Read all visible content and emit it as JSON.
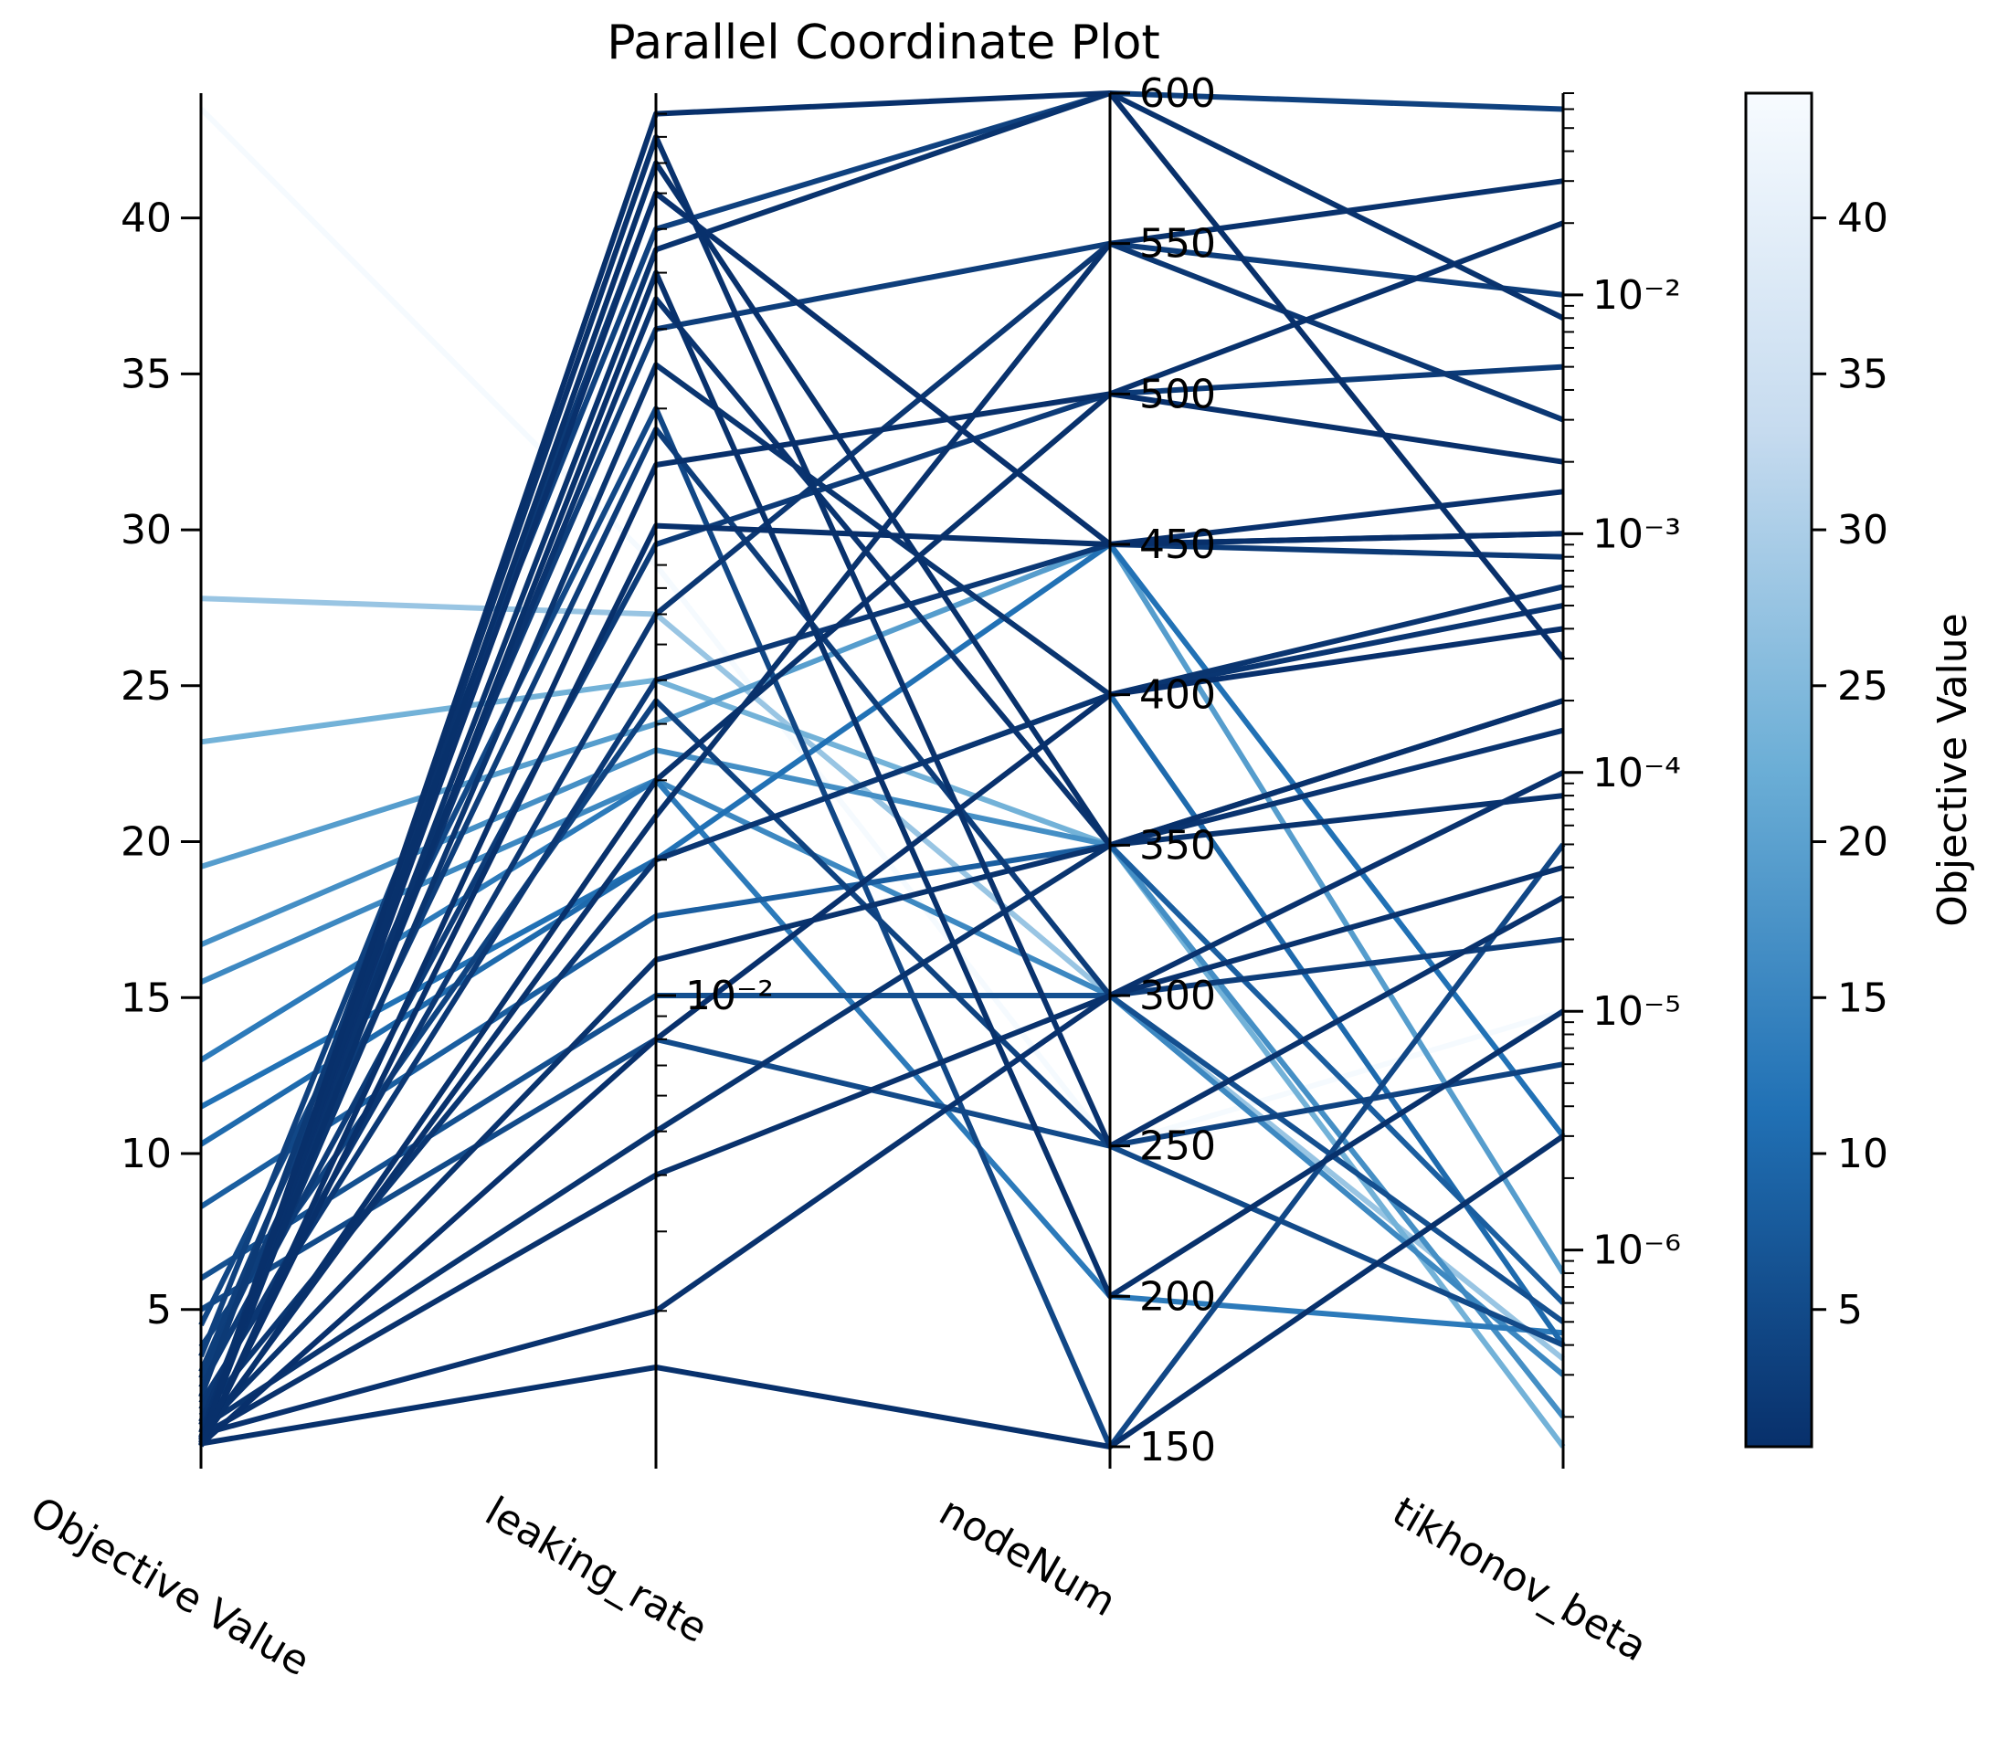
{
  "chart_data": {
    "type": "parallel_coordinates",
    "title": "Parallel Coordinate Plot",
    "colormap": "Blues_r",
    "colors": {
      "low": "#08306b",
      "mid": "#4292c6",
      "high": "#f7fbff"
    },
    "axes": [
      {
        "name": "Objective Value",
        "scale": "linear",
        "range": [
          0.6,
          44
        ],
        "ticks": [
          "5",
          "10",
          "15",
          "20",
          "25",
          "30",
          "35",
          "40"
        ],
        "tick_values": [
          5,
          10,
          15,
          20,
          25,
          30,
          35,
          40
        ],
        "tick_side": "left"
      },
      {
        "name": "leaking_rate",
        "scale": "log",
        "range": [
          0.001,
          1.0
        ],
        "ticks": [
          "10⁻²"
        ],
        "tick_values": [
          0.01
        ],
        "tick_side": "right"
      },
      {
        "name": "nodeNum",
        "scale": "linear",
        "range": [
          150,
          600
        ],
        "ticks": [
          "150",
          "200",
          "250",
          "300",
          "350",
          "400",
          "450",
          "500",
          "550",
          "600"
        ],
        "tick_values": [
          150,
          200,
          250,
          300,
          350,
          400,
          450,
          500,
          550,
          600
        ],
        "tick_side": "right"
      },
      {
        "name": "tikhonov_beta",
        "scale": "log",
        "range": [
          1.5e-07,
          0.07
        ],
        "ticks": [
          "10⁻⁶",
          "10⁻⁵",
          "10⁻⁴",
          "10⁻³",
          "10⁻²"
        ],
        "tick_values": [
          1e-06,
          1e-05,
          0.0001,
          0.001,
          0.01
        ],
        "tick_side": "right"
      }
    ],
    "colorbar": {
      "label": "Objective Value",
      "range": [
        0.6,
        44
      ],
      "ticks": [
        "5",
        "10",
        "15",
        "20",
        "25",
        "30",
        "35",
        "40"
      ],
      "tick_values": [
        5,
        10,
        15,
        20,
        25,
        30,
        35,
        40
      ]
    },
    "sample_lines": [
      [
        43.5,
        0.09,
        250,
        1e-05
      ],
      [
        27.8,
        0.07,
        300,
        3.5e-07
      ],
      [
        23.2,
        0.05,
        350,
        1.5e-07
      ],
      [
        19.2,
        0.04,
        450,
        8e-07
      ],
      [
        16.7,
        0.035,
        350,
        2e-07
      ],
      [
        15.5,
        0.03,
        300,
        3e-07
      ],
      [
        13.0,
        0.03,
        200,
        4.5e-07
      ],
      [
        11.5,
        0.02,
        450,
        3e-06
      ],
      [
        10.3,
        0.02,
        400,
        4e-07
      ],
      [
        8.3,
        0.015,
        350,
        6e-07
      ],
      [
        6.0,
        0.01,
        300,
        5e-07
      ],
      [
        5.0,
        0.008,
        250,
        4e-07
      ],
      [
        4.5,
        0.2,
        150,
        5e-05
      ],
      [
        3.5,
        0.5,
        600,
        0.06
      ],
      [
        3.0,
        0.3,
        550,
        0.01
      ],
      [
        2.5,
        0.1,
        500,
        0.005
      ],
      [
        2.0,
        0.05,
        450,
        0.001
      ],
      [
        1.6,
        0.02,
        400,
        0.0005
      ],
      [
        1.2,
        0.005,
        350,
        0.0002
      ],
      [
        1.0,
        0.002,
        300,
        0.0001
      ],
      [
        0.9,
        0.8,
        250,
        3e-05
      ],
      [
        0.8,
        0.4,
        200,
        1e-05
      ],
      [
        0.7,
        0.0015,
        150,
        3e-06
      ],
      [
        0.65,
        0.9,
        600,
        0.0003
      ],
      [
        0.62,
        0.15,
        500,
        0.002
      ],
      [
        2.2,
        0.6,
        450,
        0.0008
      ],
      [
        1.8,
        0.07,
        550,
        0.003
      ],
      [
        1.4,
        0.25,
        400,
        0.0006
      ],
      [
        1.1,
        0.012,
        350,
        8e-05
      ],
      [
        0.95,
        0.004,
        300,
        4e-05
      ],
      [
        0.85,
        0.6,
        450,
        0.0015
      ],
      [
        0.75,
        0.03,
        500,
        0.02
      ],
      [
        0.68,
        0.008,
        400,
        0.0004
      ],
      [
        1.3,
        0.35,
        350,
        0.00015
      ],
      [
        2.8,
        0.18,
        300,
        2e-05
      ],
      [
        3.8,
        0.045,
        250,
        6e-06
      ],
      [
        0.72,
        0.7,
        350,
        0.0002
      ],
      [
        0.66,
        0.11,
        450,
        0.001
      ],
      [
        0.9,
        0.025,
        550,
        0.03
      ],
      [
        1.05,
        0.45,
        600,
        0.008
      ]
    ]
  }
}
